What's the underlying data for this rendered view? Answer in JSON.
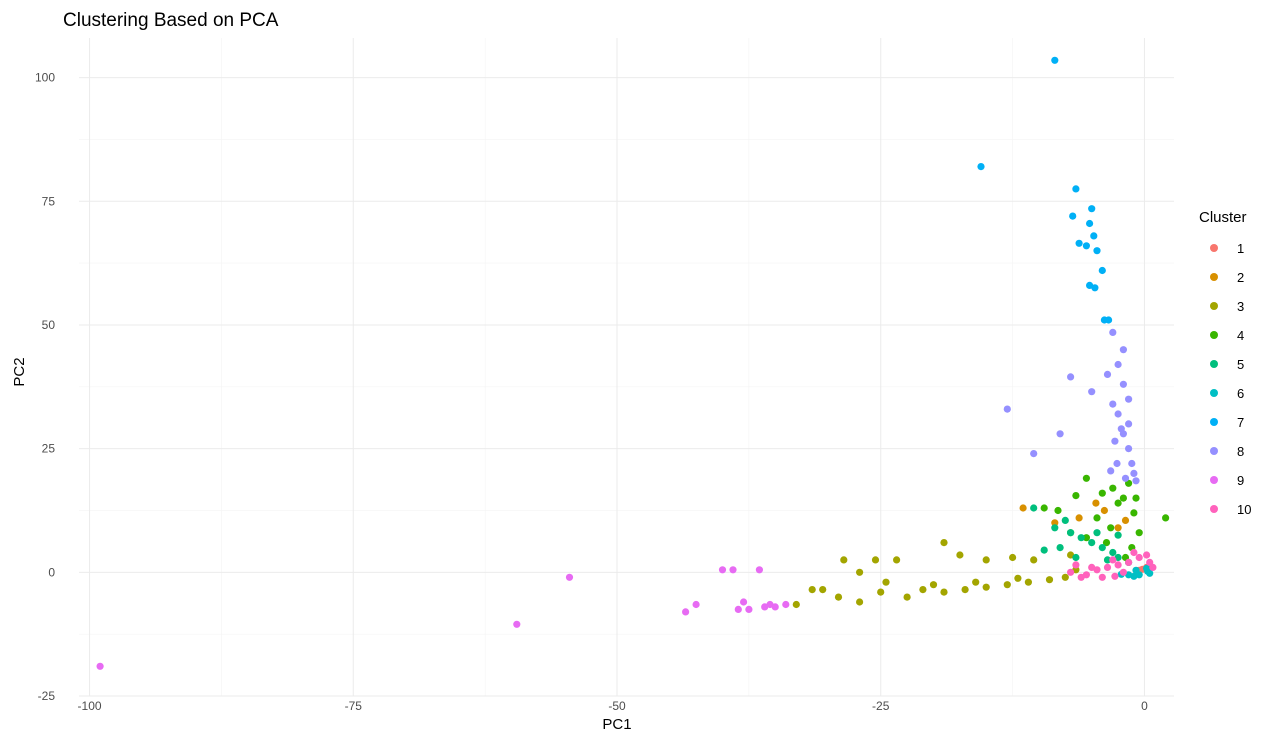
{
  "chart_data": {
    "type": "scatter",
    "title": "Clustering Based on PCA",
    "xlabel": "PC1",
    "ylabel": "PC2",
    "xlim": [
      -101,
      2.8
    ],
    "ylim": [
      -25,
      108
    ],
    "x_ticks": [
      -100,
      -75,
      -50,
      -25,
      0
    ],
    "y_ticks": [
      -25,
      0,
      25,
      50,
      75,
      100
    ],
    "x_tick_labels": [
      "-100",
      "-75",
      "-50",
      "-25",
      "0"
    ],
    "y_tick_labels": [
      "-25",
      "0",
      "25",
      "50",
      "75",
      "100"
    ],
    "grid": true,
    "legend": {
      "title": "Cluster",
      "position": "right"
    },
    "series": [
      {
        "name": "1",
        "color": "#F8766D",
        "points": [
          [
            -0.5,
            0.4
          ],
          [
            0.2,
            1.0
          ],
          [
            -0.2,
            0.6
          ]
        ]
      },
      {
        "name": "2",
        "color": "#D89000",
        "points": [
          [
            -11.5,
            13.0
          ],
          [
            -8.5,
            10.0
          ],
          [
            -6.2,
            11.0
          ],
          [
            -4.6,
            14.0
          ],
          [
            -2.5,
            9.0
          ],
          [
            -3.8,
            12.5
          ],
          [
            -1.8,
            10.5
          ]
        ]
      },
      {
        "name": "3",
        "color": "#A3A500",
        "points": [
          [
            -19,
            6
          ],
          [
            -25.5,
            2.5
          ],
          [
            -23.5,
            2.5
          ],
          [
            -28.5,
            2.5
          ],
          [
            -17.5,
            3.5
          ],
          [
            -15,
            2.5
          ],
          [
            -12.5,
            3.0
          ],
          [
            -10.5,
            2.5
          ],
          [
            -7,
            3.5
          ],
          [
            -27,
            0
          ],
          [
            -30.5,
            -3.5
          ],
          [
            -33,
            -6.5
          ],
          [
            -31.5,
            -3.5
          ],
          [
            -29,
            -5
          ],
          [
            -27,
            -6
          ],
          [
            -25,
            -4
          ],
          [
            -22.5,
            -5
          ],
          [
            -21,
            -3.5
          ],
          [
            -19,
            -4
          ],
          [
            -17,
            -3.5
          ],
          [
            -15,
            -3
          ],
          [
            -13,
            -2.5
          ],
          [
            -11,
            -2
          ],
          [
            -9,
            -1.5
          ],
          [
            -7.5,
            -1
          ],
          [
            -24.5,
            -2
          ],
          [
            -20,
            -2.5
          ],
          [
            -16,
            -2
          ],
          [
            -12,
            -1.2
          ],
          [
            -6.5,
            0.5
          ]
        ]
      },
      {
        "name": "4",
        "color": "#39B600",
        "points": [
          [
            2,
            11
          ],
          [
            -1.5,
            18
          ],
          [
            -2,
            15
          ],
          [
            -1,
            12
          ],
          [
            -0.5,
            8
          ],
          [
            -1.2,
            5
          ],
          [
            -5.5,
            19
          ],
          [
            -3,
            17
          ],
          [
            -9.5,
            13
          ],
          [
            -8.2,
            12.5
          ],
          [
            -4.5,
            11
          ],
          [
            -3.2,
            9
          ],
          [
            -6.5,
            15.5
          ],
          [
            -4,
            16
          ],
          [
            -2.5,
            14
          ],
          [
            -7,
            8
          ],
          [
            -5.5,
            7
          ],
          [
            -1.8,
            3
          ],
          [
            -0.8,
            15
          ],
          [
            -3.6,
            6
          ]
        ]
      },
      {
        "name": "5",
        "color": "#00BF7D",
        "points": [
          [
            -10.5,
            13
          ],
          [
            -8.5,
            9
          ],
          [
            -7,
            8
          ],
          [
            -6,
            7
          ],
          [
            -5,
            6
          ],
          [
            -4,
            5
          ],
          [
            -3,
            4
          ],
          [
            -2.5,
            3
          ],
          [
            -8,
            5
          ],
          [
            -6.5,
            3
          ],
          [
            -9.5,
            4.5
          ],
          [
            -4.5,
            8
          ],
          [
            -2.5,
            7.5
          ],
          [
            -7.5,
            10.5
          ],
          [
            -3.5,
            2.5
          ],
          [
            -1.5,
            2
          ]
        ]
      },
      {
        "name": "6",
        "color": "#00BFC4",
        "points": [
          [
            -0.5,
            -0.5
          ],
          [
            0.3,
            0.2
          ],
          [
            -1.0,
            -0.8
          ],
          [
            0.5,
            -0.2
          ],
          [
            -1.5,
            -0.5
          ],
          [
            0.2,
            0.8
          ],
          [
            -2.2,
            -0.4
          ],
          [
            -0.8,
            0.4
          ]
        ]
      },
      {
        "name": "7",
        "color": "#00B0F6",
        "points": [
          [
            -8.5,
            103.5
          ],
          [
            -15.5,
            82
          ],
          [
            -6.5,
            77.5
          ],
          [
            -5,
            73.5
          ],
          [
            -6.8,
            72
          ],
          [
            -5.2,
            70.5
          ],
          [
            -4.8,
            68
          ],
          [
            -6.2,
            66.5
          ],
          [
            -5.5,
            66
          ],
          [
            -4.5,
            65
          ],
          [
            -4,
            61
          ],
          [
            -5.2,
            58
          ],
          [
            -4.7,
            57.5
          ],
          [
            -3.8,
            51
          ],
          [
            -3.4,
            51
          ]
        ]
      },
      {
        "name": "8",
        "color": "#9590FF",
        "points": [
          [
            -13,
            33
          ],
          [
            -10.5,
            24
          ],
          [
            -7,
            39.5
          ],
          [
            -5,
            36.5
          ],
          [
            -3,
            48.5
          ],
          [
            -2,
            45
          ],
          [
            -3.5,
            40
          ],
          [
            -2.5,
            42
          ],
          [
            -2,
            38
          ],
          [
            -1.5,
            35
          ],
          [
            -2.5,
            32
          ],
          [
            -2,
            28
          ],
          [
            -1.5,
            25
          ],
          [
            -1.2,
            22
          ],
          [
            -1.0,
            20
          ],
          [
            -1.5,
            30
          ],
          [
            -3,
            34
          ],
          [
            -8,
            28
          ],
          [
            -2.2,
            29
          ],
          [
            -2.8,
            26.5
          ],
          [
            -1.8,
            19
          ],
          [
            -0.8,
            18.5
          ],
          [
            -3.2,
            20.5
          ],
          [
            -2.6,
            22
          ]
        ]
      },
      {
        "name": "9",
        "color": "#E76BF3",
        "points": [
          [
            -99,
            -19
          ],
          [
            -59.5,
            -10.5
          ],
          [
            -54.5,
            -1
          ],
          [
            -43.5,
            -8
          ],
          [
            -42.5,
            -6.5
          ],
          [
            -40,
            0.5
          ],
          [
            -39,
            0.5
          ],
          [
            -38.5,
            -7.5
          ],
          [
            -38,
            -6
          ],
          [
            -37.5,
            -7.5
          ],
          [
            -36.5,
            0.5
          ],
          [
            -36,
            -7
          ],
          [
            -35.5,
            -6.5
          ],
          [
            -35,
            -7
          ],
          [
            -34,
            -6.5
          ]
        ]
      },
      {
        "name": "10",
        "color": "#FF62BC",
        "points": [
          [
            -7,
            0
          ],
          [
            -5.5,
            -0.5
          ],
          [
            -4.5,
            0.5
          ],
          [
            -3.5,
            1
          ],
          [
            -2.5,
            1.5
          ],
          [
            -1.5,
            2
          ],
          [
            -0.5,
            3
          ],
          [
            0.5,
            2
          ],
          [
            0.8,
            1
          ],
          [
            -6,
            -1
          ],
          [
            -4,
            -1
          ],
          [
            -2,
            0
          ],
          [
            -1,
            4
          ],
          [
            0.2,
            3.5
          ],
          [
            -3,
            2.5
          ],
          [
            -5,
            1
          ],
          [
            -6.5,
            1.5
          ],
          [
            -2.8,
            -0.8
          ]
        ]
      }
    ]
  }
}
